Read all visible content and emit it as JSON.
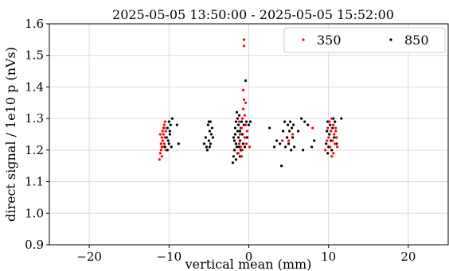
{
  "chart_data": {
    "type": "scatter",
    "title": "2025-05-05 13:50:00 - 2025-05-05 15:52:00",
    "xlabel": "vertical mean (mm)",
    "ylabel": "direct signal / 1e10 p (nVs)",
    "xlim": [
      -25,
      25
    ],
    "ylim": [
      0.9,
      1.6
    ],
    "xticks": [
      -20,
      -10,
      0,
      10,
      20
    ],
    "xtick_labels": [
      "−20",
      "−10",
      "0",
      "10",
      "20"
    ],
    "yticks": [
      0.9,
      1.0,
      1.1,
      1.2,
      1.3,
      1.4,
      1.5,
      1.6
    ],
    "ytick_labels": [
      "0.9",
      "1.0",
      "1.1",
      "1.2",
      "1.3",
      "1.4",
      "1.5",
      "1.6"
    ],
    "grid": true,
    "legend": {
      "placement": "top-right",
      "columns": 2
    },
    "series": [
      {
        "name": "350",
        "color": "#ff0000",
        "points": [
          [
            -11.2,
            1.17
          ],
          [
            -11.1,
            1.19
          ],
          [
            -11.0,
            1.2
          ],
          [
            -11.0,
            1.22
          ],
          [
            -10.9,
            1.21
          ],
          [
            -10.9,
            1.24
          ],
          [
            -10.8,
            1.23
          ],
          [
            -10.8,
            1.26
          ],
          [
            -10.7,
            1.25
          ],
          [
            -10.7,
            1.27
          ],
          [
            -10.6,
            1.28
          ],
          [
            -10.6,
            1.22
          ],
          [
            -10.5,
            1.24
          ],
          [
            -10.5,
            1.29
          ],
          [
            -10.4,
            1.26
          ],
          [
            -10.4,
            1.2
          ],
          [
            -11.1,
            1.25
          ],
          [
            -10.9,
            1.18
          ],
          [
            -10.6,
            1.27
          ],
          [
            -10.8,
            1.21
          ],
          [
            -1.3,
            1.19
          ],
          [
            -1.2,
            1.22
          ],
          [
            -1.1,
            1.25
          ],
          [
            -1.0,
            1.21
          ],
          [
            -0.9,
            1.18
          ],
          [
            -0.9,
            1.27
          ],
          [
            -0.8,
            1.3
          ],
          [
            -0.7,
            1.33
          ],
          [
            -0.7,
            1.39
          ],
          [
            -0.6,
            1.36
          ],
          [
            -0.6,
            1.53
          ],
          [
            -0.6,
            1.55
          ],
          [
            -0.5,
            1.31
          ],
          [
            -0.5,
            1.24
          ],
          [
            -0.4,
            1.28
          ],
          [
            -0.3,
            1.22
          ],
          [
            -0.2,
            1.26
          ],
          [
            -1.2,
            1.29
          ],
          [
            -0.8,
            1.2
          ],
          [
            -0.4,
            1.35
          ],
          [
            0.1,
            1.21
          ],
          [
            5.0,
            1.23
          ],
          [
            5.5,
            1.25
          ],
          [
            4.2,
            1.23
          ],
          [
            8.0,
            1.27
          ],
          [
            9.6,
            1.2
          ],
          [
            9.8,
            1.23
          ],
          [
            9.9,
            1.27
          ],
          [
            10.0,
            1.24
          ],
          [
            10.1,
            1.29
          ],
          [
            10.2,
            1.21
          ],
          [
            10.3,
            1.26
          ],
          [
            10.4,
            1.18
          ],
          [
            10.5,
            1.23
          ],
          [
            10.6,
            1.28
          ],
          [
            10.7,
            1.25
          ],
          [
            10.8,
            1.22
          ],
          [
            10.9,
            1.27
          ],
          [
            11.0,
            1.24
          ],
          [
            11.1,
            1.21
          ],
          [
            10.4,
            1.3
          ],
          [
            10.6,
            1.19
          ],
          [
            10.9,
            1.26
          ]
        ]
      },
      {
        "name": "850",
        "color": "#000000",
        "points": [
          [
            -10.5,
            1.21
          ],
          [
            -10.3,
            1.24
          ],
          [
            -10.2,
            1.27
          ],
          [
            -10.1,
            1.23
          ],
          [
            -10.0,
            1.29
          ],
          [
            -10.0,
            1.22
          ],
          [
            -9.9,
            1.26
          ],
          [
            -9.8,
            1.28
          ],
          [
            -9.7,
            1.21
          ],
          [
            -9.6,
            1.3
          ],
          [
            -9.0,
            1.28
          ],
          [
            -8.8,
            1.22
          ],
          [
            -10.2,
            1.2
          ],
          [
            -9.9,
            1.25
          ],
          [
            -5.6,
            1.22
          ],
          [
            -5.4,
            1.24
          ],
          [
            -5.3,
            1.21
          ],
          [
            -5.2,
            1.2
          ],
          [
            -5.1,
            1.28
          ],
          [
            -5.0,
            1.23
          ],
          [
            -4.9,
            1.26
          ],
          [
            -4.8,
            1.29
          ],
          [
            -4.8,
            1.22
          ],
          [
            -4.7,
            1.25
          ],
          [
            -4.6,
            1.27
          ],
          [
            -4.5,
            1.24
          ],
          [
            -4.9,
            1.21
          ],
          [
            -5.0,
            1.29
          ],
          [
            -2.0,
            1.16
          ],
          [
            -1.9,
            1.18
          ],
          [
            -1.8,
            1.2
          ],
          [
            -1.8,
            1.23
          ],
          [
            -1.7,
            1.25
          ],
          [
            -1.7,
            1.27
          ],
          [
            -1.6,
            1.22
          ],
          [
            -1.6,
            1.29
          ],
          [
            -1.5,
            1.21
          ],
          [
            -1.5,
            1.32
          ],
          [
            -1.4,
            1.19
          ],
          [
            -1.4,
            1.26
          ],
          [
            -1.3,
            1.24
          ],
          [
            -1.3,
            1.28
          ],
          [
            -1.2,
            1.21
          ],
          [
            -1.2,
            1.31
          ],
          [
            -1.1,
            1.18
          ],
          [
            -1.1,
            1.23
          ],
          [
            -1.0,
            1.27
          ],
          [
            -1.0,
            1.2
          ],
          [
            -0.9,
            1.29
          ],
          [
            -0.8,
            1.25
          ],
          [
            -0.7,
            1.22
          ],
          [
            -0.6,
            1.28
          ],
          [
            -0.5,
            1.21
          ],
          [
            -0.4,
            1.42
          ],
          [
            -0.3,
            1.29
          ],
          [
            -0.2,
            1.24
          ],
          [
            0.0,
            1.28
          ],
          [
            0.2,
            1.29
          ],
          [
            -1.9,
            1.24
          ],
          [
            -1.6,
            1.17
          ],
          [
            -1.4,
            1.3
          ],
          [
            -1.1,
            1.26
          ],
          [
            2.6,
            1.27
          ],
          [
            3.2,
            1.21
          ],
          [
            3.5,
            1.23
          ],
          [
            3.9,
            1.22
          ],
          [
            4.1,
            1.15
          ],
          [
            4.3,
            1.26
          ],
          [
            4.5,
            1.29
          ],
          [
            4.6,
            1.21
          ],
          [
            4.8,
            1.24
          ],
          [
            4.9,
            1.28
          ],
          [
            5.0,
            1.22
          ],
          [
            5.1,
            1.26
          ],
          [
            5.2,
            1.29
          ],
          [
            5.3,
            1.2
          ],
          [
            5.4,
            1.27
          ],
          [
            5.5,
            1.24
          ],
          [
            5.6,
            1.28
          ],
          [
            5.7,
            1.21
          ],
          [
            6.2,
            1.26
          ],
          [
            6.6,
            1.3
          ],
          [
            6.8,
            1.2
          ],
          [
            7.0,
            1.29
          ],
          [
            7.4,
            1.28
          ],
          [
            7.9,
            1.21
          ],
          [
            8.2,
            1.23
          ],
          [
            9.7,
            1.22
          ],
          [
            9.8,
            1.26
          ],
          [
            9.9,
            1.29
          ],
          [
            10.0,
            1.21
          ],
          [
            10.1,
            1.25
          ],
          [
            10.2,
            1.28
          ],
          [
            10.3,
            1.23
          ],
          [
            10.4,
            1.2
          ],
          [
            10.5,
            1.27
          ],
          [
            10.6,
            1.3
          ],
          [
            10.7,
            1.24
          ],
          [
            10.8,
            1.29
          ],
          [
            11.6,
            1.3
          ],
          [
            11.0,
            1.22
          ],
          [
            9.9,
            1.19
          ]
        ]
      }
    ]
  }
}
